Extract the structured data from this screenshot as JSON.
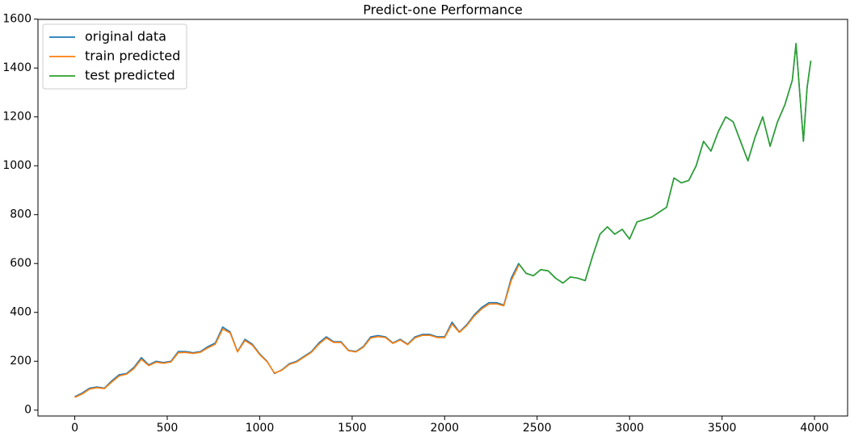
{
  "chart_data": {
    "type": "line",
    "title": "Predict-one Performance",
    "xlim": [
      -199,
      4179
    ],
    "ylim": [
      -24,
      1599
    ],
    "xticks": [
      0,
      500,
      1000,
      1500,
      2000,
      2500,
      3000,
      3500,
      4000
    ],
    "yticks": [
      0,
      200,
      400,
      600,
      800,
      1000,
      1200,
      1400,
      1600
    ],
    "grid": false,
    "legend": "upper left",
    "series": [
      {
        "name": "original data",
        "color": "#1f77b4",
        "x": [
          0,
          40,
          80,
          120,
          160,
          200,
          240,
          280,
          320,
          360,
          400,
          440,
          480,
          520,
          560,
          600,
          640,
          680,
          720,
          760,
          800,
          840,
          880,
          920,
          960,
          1000,
          1040,
          1080,
          1120,
          1160,
          1200,
          1240,
          1280,
          1320,
          1360,
          1400,
          1440,
          1480,
          1520,
          1560,
          1600,
          1640,
          1680,
          1720,
          1760,
          1800,
          1840,
          1880,
          1920,
          1960,
          2000,
          2040,
          2080,
          2120,
          2160,
          2200,
          2240,
          2280,
          2320,
          2360,
          2400,
          2440,
          2480,
          2520,
          2560,
          2600,
          2640,
          2680,
          2720,
          2760,
          2800,
          2840,
          2880,
          2920,
          2960,
          3000,
          3040,
          3080,
          3120,
          3160,
          3200,
          3240,
          3280,
          3320,
          3360,
          3400,
          3440,
          3480,
          3520,
          3560,
          3600,
          3640,
          3680,
          3720,
          3760,
          3800,
          3840,
          3880,
          3900,
          3920,
          3940,
          3960,
          3980
        ],
        "values": [
          55,
          70,
          90,
          95,
          90,
          120,
          145,
          150,
          175,
          215,
          185,
          200,
          195,
          200,
          240,
          240,
          235,
          240,
          260,
          275,
          340,
          320,
          240,
          290,
          270,
          230,
          200,
          150,
          165,
          190,
          200,
          220,
          240,
          275,
          300,
          280,
          280,
          245,
          240,
          260,
          300,
          305,
          300,
          275,
          290,
          270,
          300,
          310,
          310,
          300,
          300,
          360,
          320,
          350,
          390,
          420,
          440,
          440,
          430,
          540,
          600,
          560,
          550,
          575,
          570,
          540,
          520,
          545,
          540,
          530,
          630,
          720,
          750,
          720,
          740,
          700,
          770,
          780,
          790,
          810,
          830,
          950,
          930,
          940,
          1000,
          1100,
          1060,
          1140,
          1200,
          1180,
          1100,
          1020,
          1120,
          1200,
          1080,
          1180,
          1250,
          1350,
          1500,
          1300,
          1100,
          1320,
          1430
        ]
      },
      {
        "name": "train predicted",
        "color": "#ff7f0e",
        "x": [
          0,
          40,
          80,
          120,
          160,
          200,
          240,
          280,
          320,
          360,
          400,
          440,
          480,
          520,
          560,
          600,
          640,
          680,
          720,
          760,
          800,
          840,
          880,
          920,
          960,
          1000,
          1040,
          1080,
          1120,
          1160,
          1200,
          1240,
          1280,
          1320,
          1360,
          1400,
          1440,
          1480,
          1520,
          1560,
          1600,
          1640,
          1680,
          1720,
          1760,
          1800,
          1840,
          1880,
          1920,
          1960,
          2000,
          2040,
          2080,
          2120,
          2160,
          2200,
          2240,
          2280,
          2320,
          2360,
          2400
        ],
        "values": [
          52,
          66,
          86,
          92,
          88,
          115,
          140,
          147,
          170,
          208,
          182,
          196,
          192,
          197,
          235,
          236,
          232,
          237,
          255,
          270,
          332,
          316,
          238,
          285,
          266,
          227,
          198,
          152,
          163,
          187,
          197,
          217,
          237,
          270,
          295,
          277,
          277,
          243,
          238,
          257,
          295,
          301,
          297,
          273,
          287,
          268,
          296,
          306,
          306,
          297,
          297,
          352,
          318,
          346,
          385,
          414,
          434,
          435,
          427,
          530,
          592
        ]
      },
      {
        "name": "test predicted",
        "color": "#2ca02c",
        "x": [
          2400,
          2440,
          2480,
          2520,
          2560,
          2600,
          2640,
          2680,
          2720,
          2760,
          2800,
          2840,
          2880,
          2920,
          2960,
          3000,
          3040,
          3080,
          3120,
          3160,
          3200,
          3240,
          3280,
          3320,
          3360,
          3400,
          3440,
          3480,
          3520,
          3560,
          3600,
          3640,
          3680,
          3720,
          3760,
          3800,
          3840,
          3880,
          3900,
          3920,
          3940,
          3960,
          3980
        ],
        "values": [
          600,
          560,
          550,
          575,
          570,
          540,
          520,
          545,
          540,
          530,
          630,
          720,
          750,
          720,
          740,
          700,
          770,
          780,
          790,
          810,
          830,
          950,
          930,
          940,
          1000,
          1100,
          1060,
          1140,
          1200,
          1180,
          1100,
          1020,
          1120,
          1200,
          1080,
          1180,
          1250,
          1350,
          1500,
          1300,
          1100,
          1320,
          1430
        ]
      }
    ]
  }
}
